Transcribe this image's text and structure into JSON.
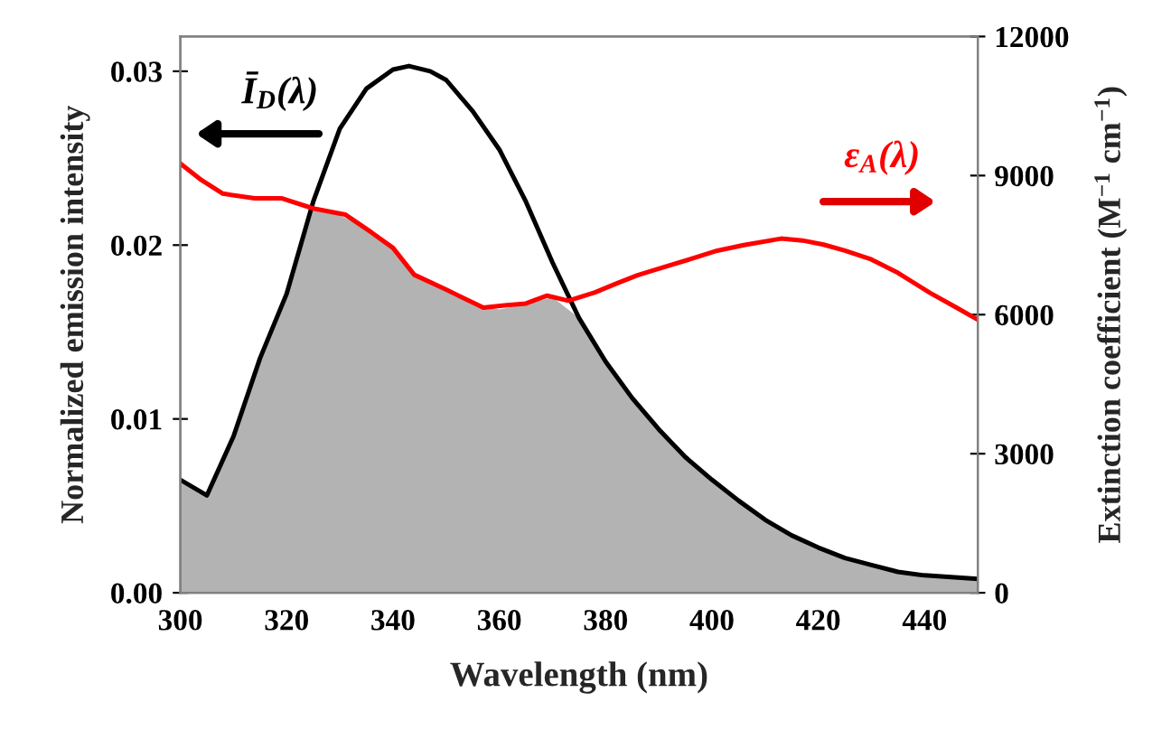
{
  "chart_data": {
    "type": "line",
    "xlabel": "Wavelength (nm)",
    "ylabel": "Normalized emission intensity",
    "y2label": "Extinction coefficient (M$^{−1}$ cm$^{−1}$)",
    "xlim": [
      300,
      450
    ],
    "xticks": [
      300,
      320,
      340,
      360,
      380,
      400,
      420,
      440
    ],
    "ylim": [
      0,
      0.032
    ],
    "yticks": [
      {
        "value": 0,
        "label": "0.00"
      },
      {
        "value": 0.01,
        "label": "0.01"
      },
      {
        "value": 0.02,
        "label": "0.02"
      },
      {
        "value": 0.03,
        "label": "0.03"
      }
    ],
    "y2lim": [
      0,
      12000
    ],
    "y2ticks": [
      0,
      3000,
      6000,
      9000,
      12000
    ],
    "legend": false,
    "grid": false,
    "series": [
      {
        "type": "area",
        "color": "#b3b3b3",
        "x": [
          300,
          305,
          310,
          315,
          320,
          325,
          330,
          335,
          340,
          345,
          350,
          355,
          360,
          365,
          370,
          375,
          380,
          385,
          390,
          395,
          400,
          405,
          410,
          415,
          420,
          425,
          430,
          435,
          440,
          445,
          450
        ],
        "values": [
          0.0065,
          0.0056,
          0.009,
          0.0135,
          0.0172,
          0.022,
          0.0217,
          0.021,
          0.0198,
          0.0181,
          0.0174,
          0.0166,
          0.0163,
          0.0166,
          0.017,
          0.0158,
          0.0133,
          0.0112,
          0.0094,
          0.0078,
          0.0065,
          0.0053,
          0.0042,
          0.0033,
          0.0026,
          0.002,
          0.0016,
          0.0012,
          0.001,
          0.0009,
          0.0008
        ]
      },
      {
        "color": "#000000",
        "x": [
          300,
          305,
          310,
          315,
          320,
          325,
          330,
          335,
          340,
          343,
          347,
          350,
          355,
          360,
          365,
          370,
          375,
          380,
          385,
          390,
          395,
          400,
          405,
          410,
          415,
          420,
          425,
          430,
          435,
          440,
          445,
          450
        ],
        "values": [
          0.0065,
          0.0056,
          0.009,
          0.0135,
          0.0172,
          0.0225,
          0.0267,
          0.029,
          0.0301,
          0.0303,
          0.03,
          0.0295,
          0.0277,
          0.0255,
          0.0225,
          0.019,
          0.0158,
          0.0133,
          0.0112,
          0.0094,
          0.0078,
          0.0065,
          0.0053,
          0.0042,
          0.0033,
          0.0026,
          0.002,
          0.0016,
          0.0012,
          0.001,
          0.0009,
          0.0008
        ]
      },
      {
        "axis": "y2",
        "color": "#ff0000",
        "x": [
          300,
          304,
          308,
          314,
          319,
          325,
          331,
          336,
          340,
          344,
          350,
          357,
          361,
          365,
          369,
          373,
          378,
          382,
          386,
          390,
          396,
          401,
          406,
          413,
          417,
          421,
          425,
          430,
          435,
          441,
          446,
          450
        ],
        "values": [
          9260,
          8900,
          8610,
          8510,
          8510,
          8290,
          8160,
          7770,
          7440,
          6860,
          6540,
          6150,
          6200,
          6240,
          6410,
          6300,
          6480,
          6670,
          6850,
          6990,
          7200,
          7380,
          7500,
          7640,
          7600,
          7510,
          7380,
          7190,
          6900,
          6470,
          6150,
          5890
        ]
      }
    ],
    "annotations": [
      "Ī$_{D}$(λ)",
      "ε$_{A}$(λ)"
    ]
  }
}
